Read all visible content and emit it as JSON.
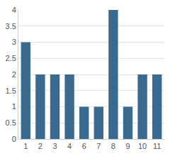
{
  "chart_data": {
    "type": "bar",
    "categories": [
      "1",
      "2",
      "3",
      "4",
      "6",
      "7",
      "8",
      "9",
      "10",
      "11"
    ],
    "values": [
      3,
      2,
      2,
      2,
      1,
      1,
      4,
      1,
      2,
      2
    ],
    "color": "#3b6a91",
    "ylim": [
      0,
      4
    ],
    "yticks": [
      0,
      0.5,
      1,
      1.5,
      2,
      2.5,
      3,
      3.5,
      4
    ],
    "grid": true
  }
}
